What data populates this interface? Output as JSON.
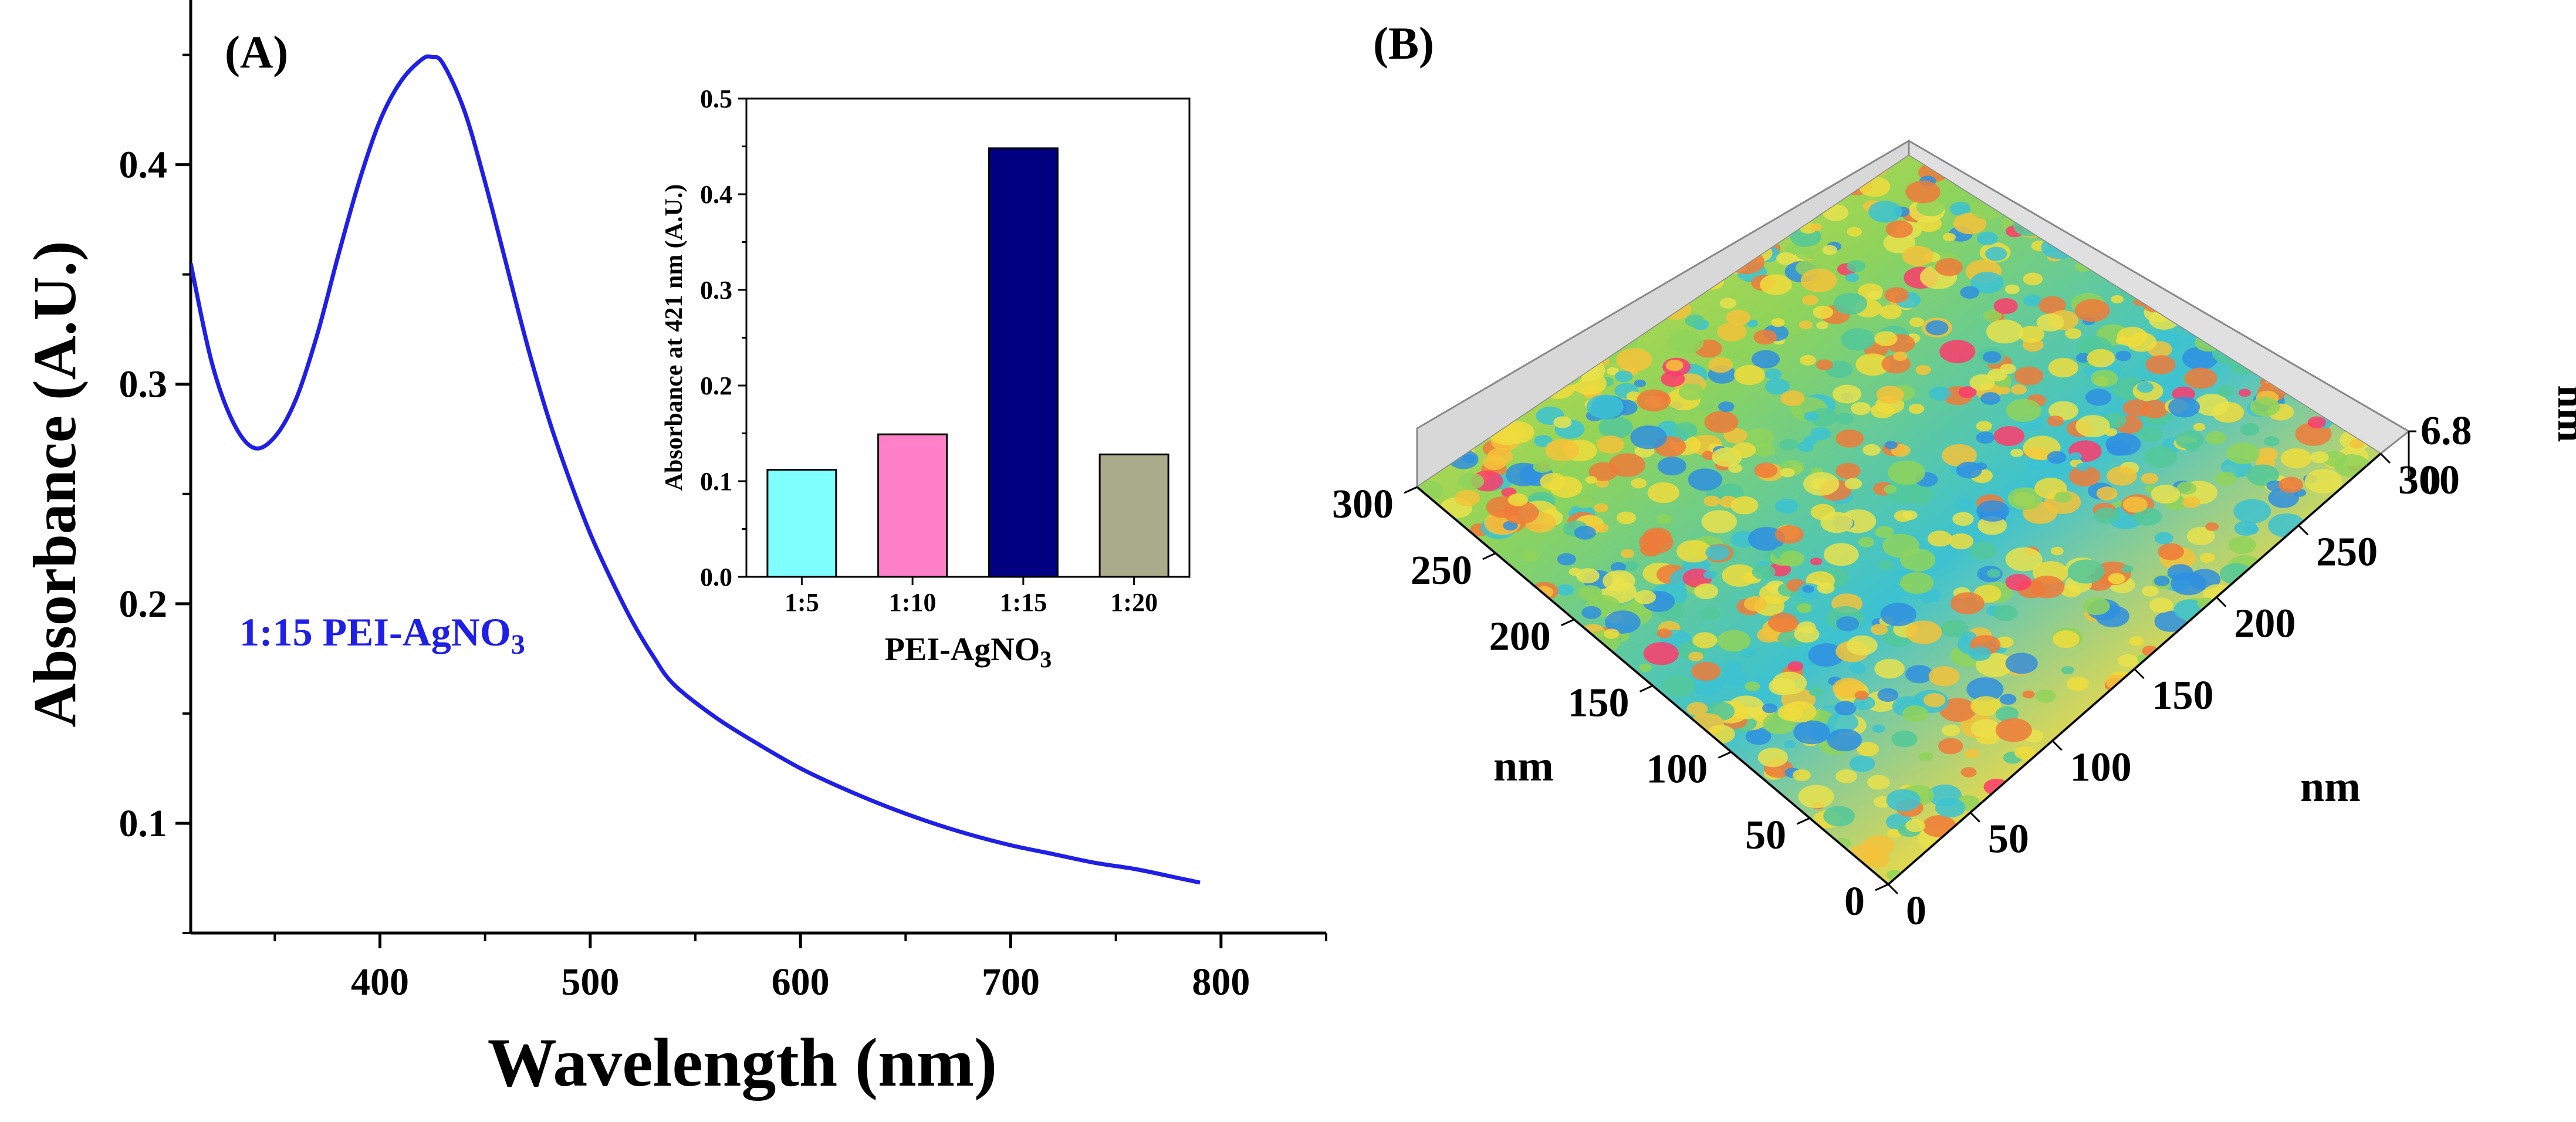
{
  "panels": {
    "a_label": "(A)",
    "b_label": "(B)"
  },
  "chart_data": [
    {
      "id": "A-main",
      "type": "line",
      "xlabel": "Wavelength (nm)",
      "ylabel": "Absorbance (A.U.)",
      "xlim": [
        310,
        850
      ],
      "ylim": [
        0.05,
        0.475
      ],
      "x_ticks": [
        400,
        500,
        600,
        700,
        800
      ],
      "y_ticks": [
        0.1,
        0.2,
        0.3,
        0.4
      ],
      "annotation": {
        "text": "1:15 PEI-AgNO",
        "subscript": "3"
      },
      "series": [
        {
          "name": "1:15 PEI-AgNO3",
          "color": "#1f1fe6",
          "x": [
            310,
            320,
            330,
            340,
            350,
            360,
            370,
            380,
            390,
            400,
            410,
            420,
            425,
            430,
            440,
            450,
            460,
            470,
            480,
            490,
            500,
            510,
            520,
            530,
            540,
            560,
            580,
            600,
            620,
            640,
            660,
            680,
            700,
            720,
            740,
            760,
            780,
            790
          ],
          "values": [
            0.355,
            0.31,
            0.283,
            0.271,
            0.276,
            0.293,
            0.322,
            0.358,
            0.392,
            0.42,
            0.438,
            0.448,
            0.449,
            0.446,
            0.425,
            0.392,
            0.355,
            0.318,
            0.285,
            0.257,
            0.232,
            0.211,
            0.192,
            0.176,
            0.163,
            0.148,
            0.136,
            0.125,
            0.116,
            0.108,
            0.101,
            0.095,
            0.09,
            0.086,
            0.082,
            0.079,
            0.075,
            0.073
          ]
        }
      ]
    },
    {
      "id": "A-inset",
      "type": "bar",
      "xlabel": "PEI-AgNO",
      "xlabel_sub": "3",
      "ylabel": "Absorbance at 421 nm (A.U.)",
      "ylim": [
        0,
        0.5
      ],
      "y_ticks": [
        0.0,
        0.1,
        0.2,
        0.3,
        0.4,
        0.5
      ],
      "categories": [
        "1:5",
        "1:10",
        "1:15",
        "1:20"
      ],
      "values": [
        0.112,
        0.149,
        0.448,
        0.128
      ],
      "colors": [
        "#80ffff",
        "#ff80c8",
        "#000080",
        "#a9ab8b"
      ]
    },
    {
      "id": "B-afm",
      "type": "surface",
      "x_label": "nm",
      "y_label": "nm",
      "z_label": "nm",
      "x_ticks": [
        0,
        50,
        100,
        150,
        200,
        250,
        300
      ],
      "y_ticks": [
        0,
        50,
        100,
        150,
        200,
        250,
        300
      ],
      "z_ticks": [
        "0",
        "6.8"
      ],
      "xlim": [
        0,
        300
      ],
      "ylim": [
        0,
        300
      ],
      "zlim": [
        0,
        6.8
      ]
    }
  ]
}
